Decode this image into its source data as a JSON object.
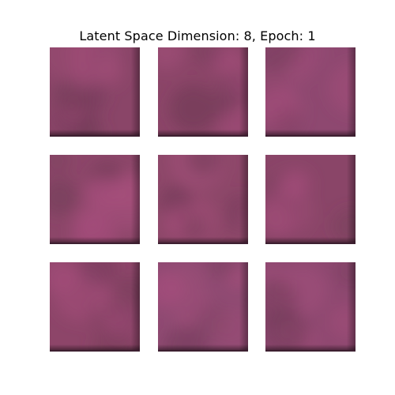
{
  "figure": {
    "title": "Latent Space Dimension: 8, Epoch: 1"
  },
  "colors": {
    "background": "#ffffff",
    "tile_base": "#8a4469",
    "tile_light": "#a84f7d",
    "tile_dark": "#6e3a55",
    "tile_shadow": "#3d1f30"
  },
  "grid": {
    "rows": 3,
    "cols": 3,
    "samples": [
      {
        "id": 1,
        "tone": "#8a4568"
      },
      {
        "id": 2,
        "tone": "#8b4568"
      },
      {
        "id": 3,
        "tone": "#8e4870"
      },
      {
        "id": 4,
        "tone": "#8c4669"
      },
      {
        "id": 5,
        "tone": "#8d4769"
      },
      {
        "id": 6,
        "tone": "#8a4568"
      },
      {
        "id": 7,
        "tone": "#8d4569"
      },
      {
        "id": 8,
        "tone": "#8f4a72"
      },
      {
        "id": 9,
        "tone": "#8e4870"
      }
    ]
  }
}
